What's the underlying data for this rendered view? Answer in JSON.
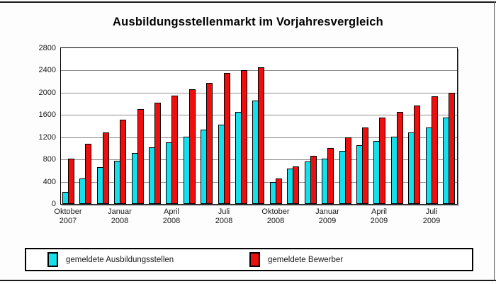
{
  "title": "Ausbildungsstellenmarkt im Vorjahresvergleich",
  "colors": {
    "series_stellen": "#16dfec",
    "series_bewerber": "#ee0e0e",
    "gridline": "#8c8c8c",
    "frame": "#000000"
  },
  "chart_data": {
    "type": "bar",
    "title": "Ausbildungsstellenmarkt im Vorjahresvergleich",
    "xlabel": "",
    "ylabel": "",
    "ylim": [
      0,
      2800
    ],
    "y_ticks": [
      0,
      400,
      800,
      1200,
      1600,
      2000,
      2400,
      2800
    ],
    "grid": true,
    "legend_position": "bottom",
    "categories": [
      "Okt 2007",
      "Nov 2007",
      "Dez 2007",
      "Jan 2008",
      "Feb 2008",
      "Mär 2008",
      "Apr 2008",
      "Mai 2008",
      "Jun 2008",
      "Jul 2008",
      "Aug 2008",
      "Sep 2008",
      "Okt 2008",
      "Nov 2008",
      "Dez 2008",
      "Jan 2009",
      "Feb 2009",
      "Mär 2009",
      "Apr 2009",
      "Mai 2009",
      "Jun 2009",
      "Jul 2009",
      "Aug 2009"
    ],
    "x_tick_labels": [
      {
        "index": 0,
        "line1": "Oktober",
        "line2": "2007"
      },
      {
        "index": 3,
        "line1": "Januar",
        "line2": "2008"
      },
      {
        "index": 6,
        "line1": "April",
        "line2": "2008"
      },
      {
        "index": 9,
        "line1": "Juli",
        "line2": "2008"
      },
      {
        "index": 12,
        "line1": "Oktober",
        "line2": "2008"
      },
      {
        "index": 15,
        "line1": "Januar",
        "line2": "2009"
      },
      {
        "index": 18,
        "line1": "April",
        "line2": "2009"
      },
      {
        "index": 21,
        "line1": "Juli",
        "line2": "2009"
      }
    ],
    "series": [
      {
        "name": "gemeldete Ausbildungsstellen",
        "color": "#16dfec",
        "values": [
          210,
          460,
          660,
          770,
          920,
          1020,
          1110,
          1210,
          1330,
          1420,
          1650,
          1860,
          390,
          630,
          760,
          820,
          960,
          1060,
          1130,
          1210,
          1280,
          1380,
          1550
        ]
      },
      {
        "name": "gemeldete Bewerber",
        "color": "#ee0e0e",
        "values": [
          820,
          1080,
          1290,
          1520,
          1700,
          1820,
          1950,
          2060,
          2180,
          2350,
          2410,
          2460,
          460,
          670,
          860,
          1000,
          1190,
          1370,
          1550,
          1650,
          1770,
          1930,
          2000
        ]
      }
    ]
  }
}
